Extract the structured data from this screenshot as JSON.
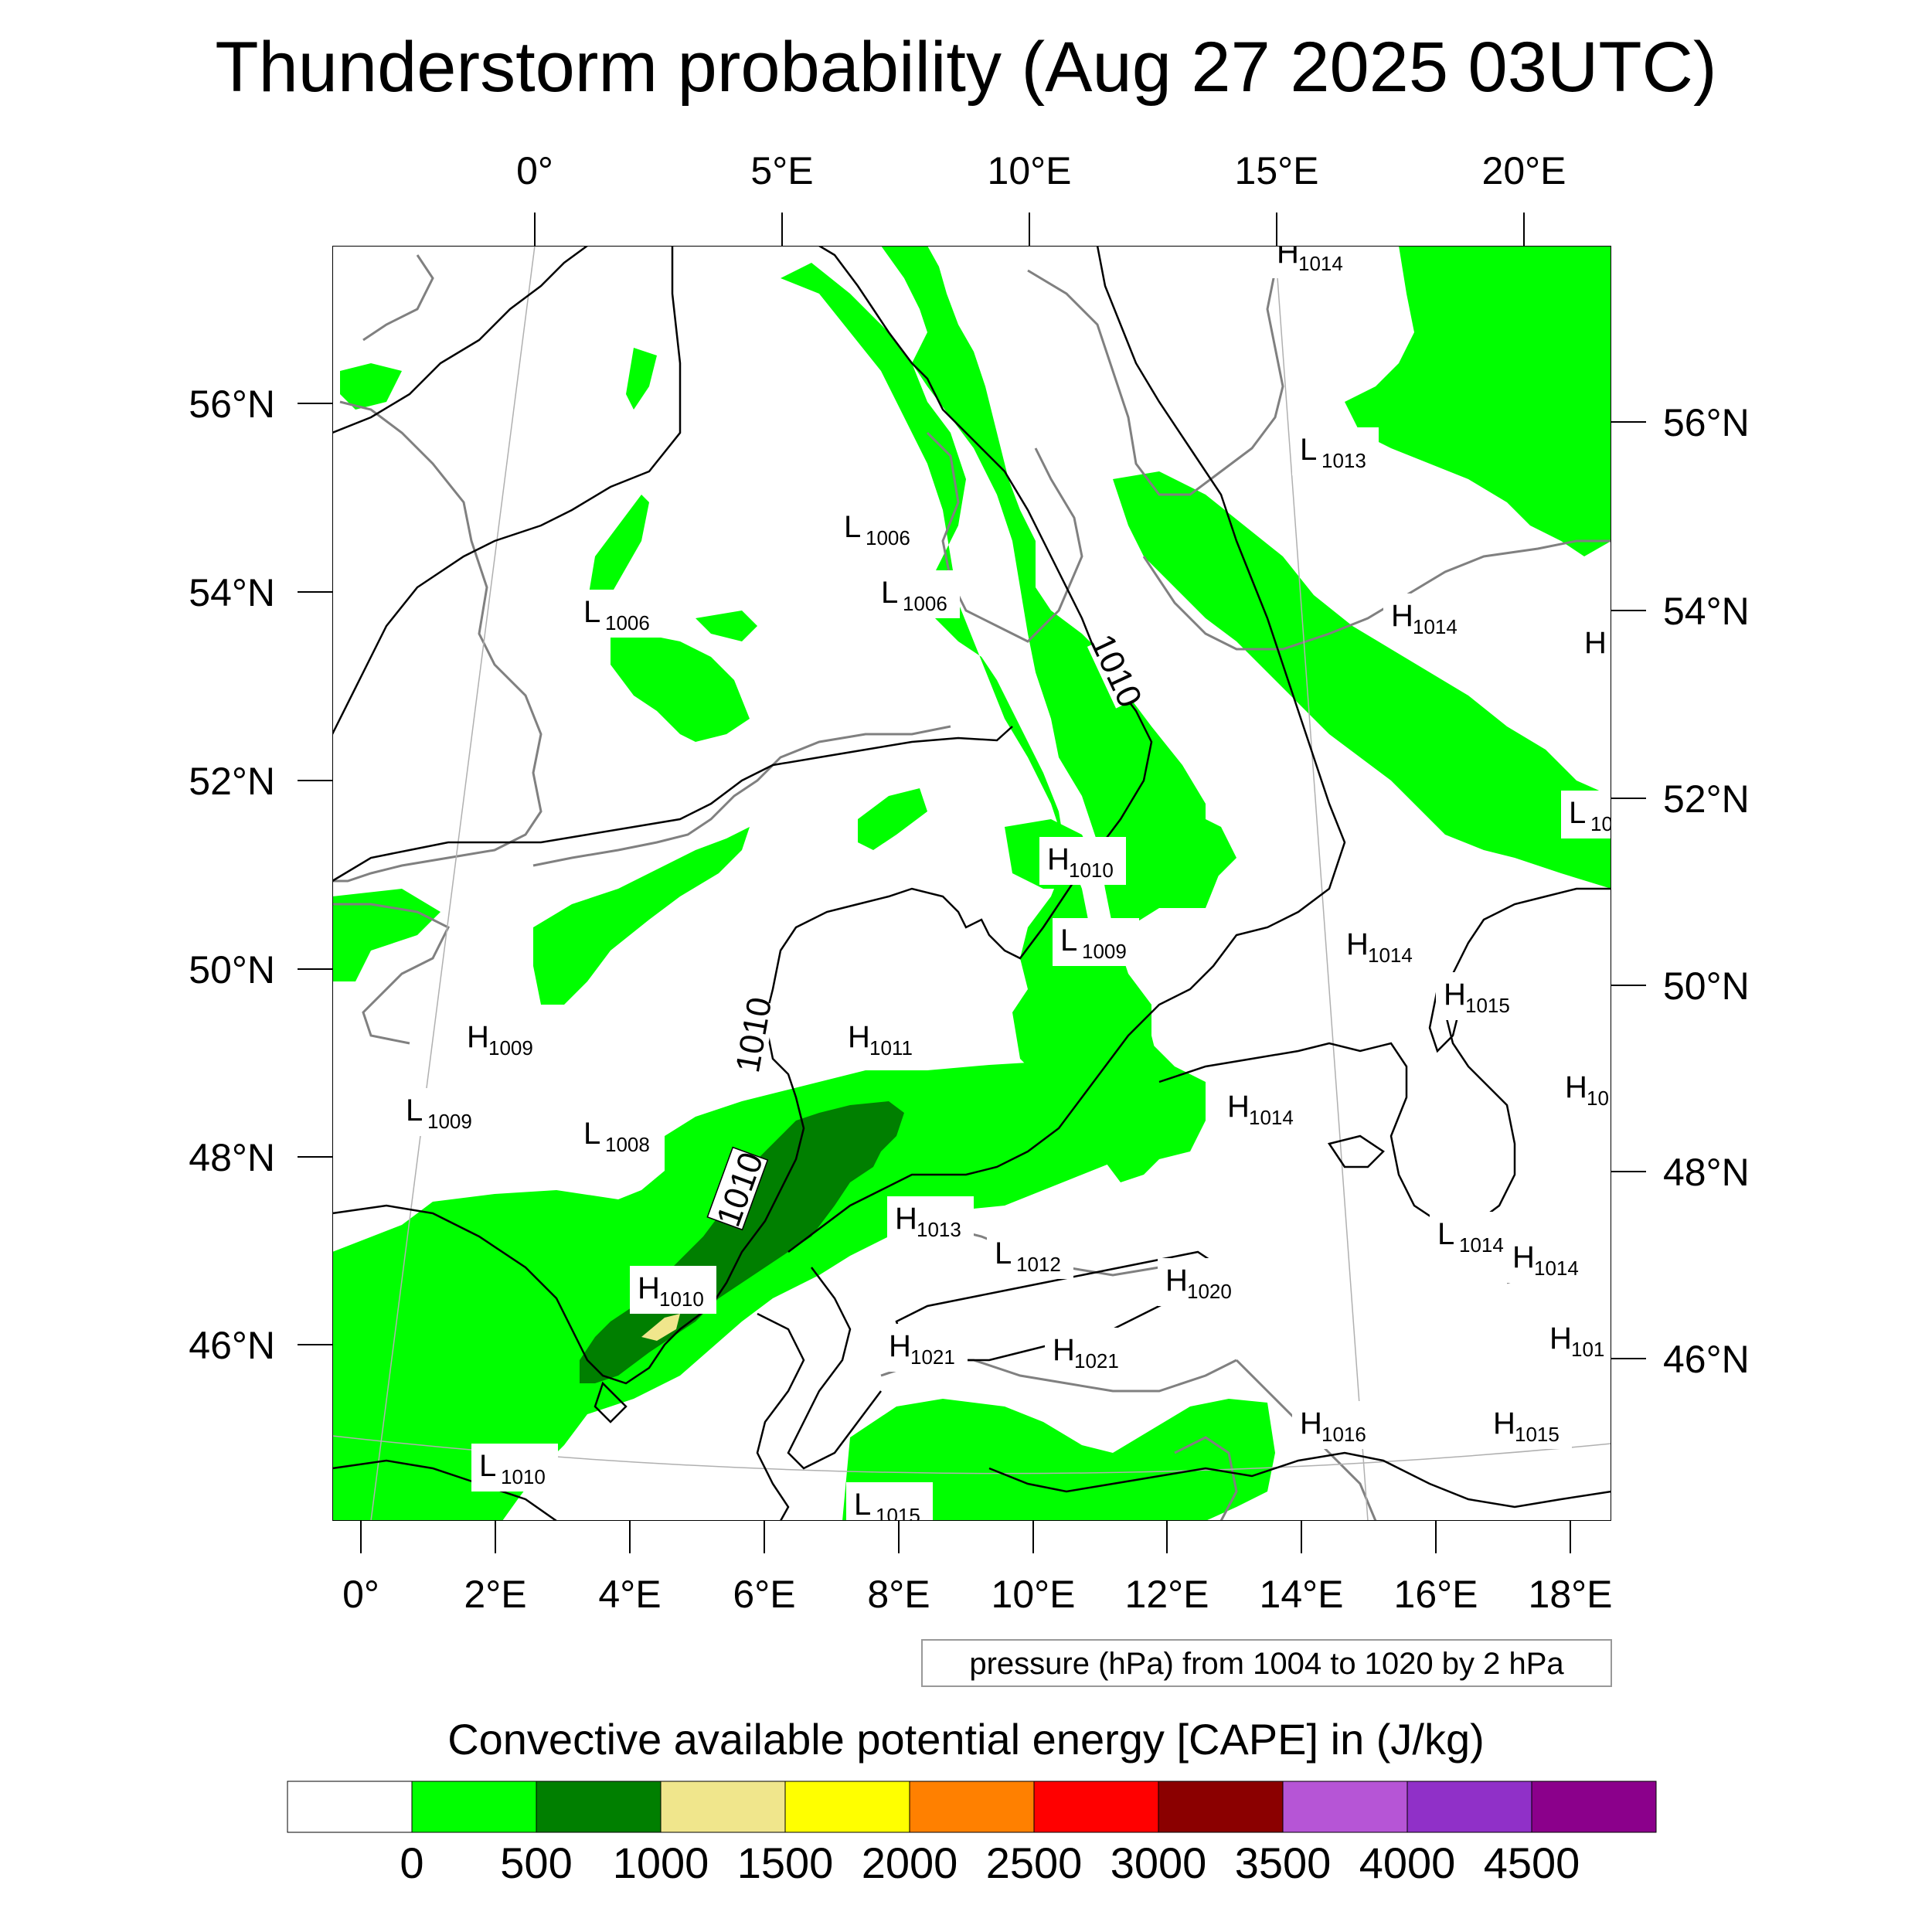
{
  "title": "Thunderstorm probability (Aug 27 2025 03UTC)",
  "colors": {
    "cape_0_500": "#00ff00",
    "cape_500_1000": "#007f00",
    "cape_1000_1500": "#f0e68c",
    "coastline": "#808080",
    "isobar": "#000000"
  },
  "axes": {
    "top_lon_labels": [
      "0°",
      "5°E",
      "10°E",
      "15°E",
      "20°E"
    ],
    "bottom_lon_labels": [
      "0°",
      "2°E",
      "4°E",
      "6°E",
      "8°E",
      "10°E",
      "12°E",
      "14°E",
      "16°E",
      "18°E"
    ],
    "left_lat_labels": [
      "56°N",
      "54°N",
      "52°N",
      "50°N",
      "48°N",
      "46°N"
    ],
    "right_lat_labels": [
      "56°N",
      "54°N",
      "52°N",
      "50°N",
      "48°N",
      "46°N"
    ]
  },
  "pressure_centers": [
    {
      "type": "H",
      "value": "1014"
    },
    {
      "type": "L",
      "value": "1013"
    },
    {
      "type": "L",
      "value": "1006"
    },
    {
      "type": "L",
      "value": "1006"
    },
    {
      "type": "L",
      "value": "1006"
    },
    {
      "type": "H",
      "value": "1014"
    },
    {
      "type": "H",
      "value": ""
    },
    {
      "type": "L",
      "value": "10"
    },
    {
      "type": "H",
      "value": "1010"
    },
    {
      "type": "L",
      "value": "1009"
    },
    {
      "type": "H",
      "value": "1014"
    },
    {
      "type": "H",
      "value": "1015"
    },
    {
      "type": "H",
      "value": "1009"
    },
    {
      "type": "H",
      "value": "1011"
    },
    {
      "type": "L",
      "value": "1009"
    },
    {
      "type": "H",
      "value": "1014"
    },
    {
      "type": "H",
      "value": "10"
    },
    {
      "type": "L",
      "value": "1008"
    },
    {
      "type": "H",
      "value": "1013"
    },
    {
      "type": "L",
      "value": "1012"
    },
    {
      "type": "L",
      "value": "1014"
    },
    {
      "type": "H",
      "value": "1014"
    },
    {
      "type": "H",
      "value": "1010"
    },
    {
      "type": "H",
      "value": "1020"
    },
    {
      "type": "H",
      "value": "1021"
    },
    {
      "type": "H",
      "value": "1021"
    },
    {
      "type": "H",
      "value": "101"
    },
    {
      "type": "H",
      "value": "1016"
    },
    {
      "type": "H",
      "value": "1015"
    },
    {
      "type": "L",
      "value": "1010"
    },
    {
      "type": "L",
      "value": "1015"
    }
  ],
  "contour_labels": [
    "1010",
    "1010",
    "1010"
  ],
  "contour_note": "pressure (hPa) from 1004 to 1020 by 2 hPa",
  "colorbar": {
    "title": "Convective available potential energy [CAPE] in (J/kg)",
    "colors": [
      "#ffffff",
      "#00ff00",
      "#007f00",
      "#f0e68c",
      "#ffff00",
      "#ff8000",
      "#ff0000",
      "#8b0000",
      "#b655d6",
      "#9030c8",
      "#8b008b"
    ],
    "labels": [
      "0",
      "500",
      "1000",
      "1500",
      "2000",
      "2500",
      "3000",
      "3500",
      "4000",
      "4500"
    ]
  }
}
